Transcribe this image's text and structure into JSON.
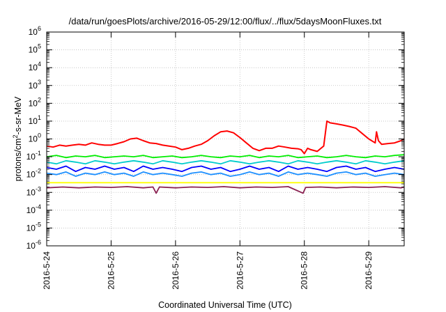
{
  "chart_data": {
    "type": "line",
    "title": "/data/run/goesPlots/archive/2016-05-29/12:00/flux/../flux/5daysMoonFluxes.txt",
    "xlabel": "Coordinated Universal Time (UTC)",
    "ylabel": {
      "base": "protons/cm",
      "sup": "2",
      "rest": "-s-sr-MeV"
    },
    "scale": {
      "y": "log"
    },
    "xlim": [
      0,
      5.55
    ],
    "ylim": [
      1e-06,
      1000000.0
    ],
    "x_ticks": [
      {
        "v": 0,
        "label": "2016-5-24"
      },
      {
        "v": 1,
        "label": "2016-5-25"
      },
      {
        "v": 2,
        "label": "2016-5-26"
      },
      {
        "v": 3,
        "label": "2016-5-27"
      },
      {
        "v": 4,
        "label": "2016-5-28"
      },
      {
        "v": 5,
        "label": "2016-5-29"
      }
    ],
    "y_ticks": [
      {
        "exp": -6,
        "label_base": "10",
        "label_exp": "-6"
      },
      {
        "exp": -5,
        "label_base": "10",
        "label_exp": "-5"
      },
      {
        "exp": -4,
        "label_base": "10",
        "label_exp": "-4"
      },
      {
        "exp": -3,
        "label_base": "10",
        "label_exp": "-3"
      },
      {
        "exp": -2,
        "label_base": "10",
        "label_exp": "-2"
      },
      {
        "exp": -1,
        "label_base": "10",
        "label_exp": "-1"
      },
      {
        "exp": 0,
        "label_base": "10",
        "label_exp": "0"
      },
      {
        "exp": 1,
        "label_base": "10",
        "label_exp": "1"
      },
      {
        "exp": 2,
        "label_base": "10",
        "label_exp": "2"
      },
      {
        "exp": 3,
        "label_base": "10",
        "label_exp": "3"
      },
      {
        "exp": 4,
        "label_base": "10",
        "label_exp": "4"
      },
      {
        "exp": 5,
        "label_base": "10",
        "label_exp": "5"
      },
      {
        "exp": 6,
        "label_base": "10",
        "label_exp": "6"
      }
    ],
    "grid": true,
    "legend": "none",
    "series": [
      {
        "color": "#ff0000",
        "x": [
          0.0,
          0.1,
          0.2,
          0.3,
          0.4,
          0.5,
          0.6,
          0.7,
          0.8,
          0.9,
          1.0,
          1.1,
          1.2,
          1.3,
          1.4,
          1.5,
          1.6,
          1.7,
          1.8,
          1.9,
          2.0,
          2.1,
          2.2,
          2.3,
          2.4,
          2.5,
          2.6,
          2.7,
          2.8,
          2.9,
          3.0,
          3.1,
          3.2,
          3.3,
          3.4,
          3.5,
          3.6,
          3.7,
          3.8,
          3.9,
          3.95,
          4.0,
          4.05,
          4.1,
          4.2,
          4.3,
          4.35,
          4.4,
          4.5,
          4.6,
          4.7,
          4.8,
          4.9,
          5.0,
          5.1,
          5.12,
          5.15,
          5.2,
          5.3,
          5.4,
          5.5,
          5.55
        ],
        "y": [
          0.4,
          0.35,
          0.45,
          0.4,
          0.45,
          0.5,
          0.45,
          0.6,
          0.5,
          0.45,
          0.45,
          0.55,
          0.7,
          1.0,
          1.1,
          0.8,
          0.6,
          0.55,
          0.45,
          0.4,
          0.35,
          0.25,
          0.3,
          0.4,
          0.5,
          0.8,
          1.5,
          2.5,
          2.8,
          2.2,
          1.2,
          0.6,
          0.3,
          0.22,
          0.3,
          0.3,
          0.4,
          0.35,
          0.3,
          0.28,
          0.25,
          0.15,
          0.3,
          0.25,
          0.2,
          0.4,
          10,
          8,
          7,
          6,
          5,
          4,
          2,
          1.0,
          0.6,
          2.5,
          0.8,
          0.5,
          0.55,
          0.6,
          0.8,
          1.0
        ]
      },
      {
        "color": "#00ee00",
        "x": [
          0.0,
          0.15,
          0.3,
          0.45,
          0.6,
          0.75,
          0.9,
          1.05,
          1.2,
          1.35,
          1.5,
          1.65,
          1.8,
          1.95,
          2.1,
          2.25,
          2.4,
          2.55,
          2.7,
          2.85,
          3.0,
          3.15,
          3.3,
          3.45,
          3.6,
          3.75,
          3.9,
          4.05,
          4.2,
          4.35,
          4.5,
          4.65,
          4.8,
          4.95,
          5.1,
          5.25,
          5.4,
          5.55
        ],
        "y": [
          0.1,
          0.12,
          0.09,
          0.11,
          0.1,
          0.12,
          0.09,
          0.1,
          0.11,
          0.1,
          0.12,
          0.09,
          0.1,
          0.11,
          0.09,
          0.1,
          0.12,
          0.1,
          0.09,
          0.11,
          0.1,
          0.12,
          0.09,
          0.11,
          0.1,
          0.12,
          0.09,
          0.1,
          0.11,
          0.09,
          0.1,
          0.12,
          0.1,
          0.09,
          0.11,
          0.1,
          0.12,
          0.13
        ]
      },
      {
        "color": "#00cccc",
        "x": [
          0.0,
          0.15,
          0.3,
          0.45,
          0.6,
          0.75,
          0.9,
          1.05,
          1.2,
          1.35,
          1.5,
          1.65,
          1.8,
          1.95,
          2.1,
          2.25,
          2.4,
          2.55,
          2.7,
          2.85,
          3.0,
          3.15,
          3.3,
          3.45,
          3.6,
          3.75,
          3.9,
          4.05,
          4.2,
          4.35,
          4.5,
          4.65,
          4.8,
          4.95,
          5.1,
          5.25,
          5.4,
          5.55
        ],
        "y": [
          0.05,
          0.04,
          0.06,
          0.05,
          0.04,
          0.06,
          0.05,
          0.04,
          0.05,
          0.06,
          0.05,
          0.04,
          0.06,
          0.05,
          0.04,
          0.05,
          0.06,
          0.05,
          0.04,
          0.06,
          0.05,
          0.04,
          0.05,
          0.06,
          0.05,
          0.04,
          0.06,
          0.05,
          0.04,
          0.05,
          0.06,
          0.05,
          0.04,
          0.06,
          0.05,
          0.04,
          0.05,
          0.06
        ]
      },
      {
        "color": "#0000ff",
        "x": [
          0.0,
          0.15,
          0.3,
          0.45,
          0.6,
          0.75,
          0.9,
          1.05,
          1.2,
          1.35,
          1.5,
          1.65,
          1.8,
          1.95,
          2.1,
          2.25,
          2.4,
          2.55,
          2.7,
          2.85,
          3.0,
          3.15,
          3.3,
          3.45,
          3.6,
          3.75,
          3.9,
          4.05,
          4.2,
          4.35,
          4.5,
          4.65,
          4.8,
          4.95,
          5.1,
          5.25,
          5.4,
          5.55
        ],
        "y": [
          0.025,
          0.02,
          0.03,
          0.015,
          0.025,
          0.02,
          0.03,
          0.02,
          0.025,
          0.015,
          0.03,
          0.02,
          0.025,
          0.02,
          0.015,
          0.025,
          0.03,
          0.02,
          0.025,
          0.015,
          0.02,
          0.03,
          0.02,
          0.025,
          0.015,
          0.03,
          0.02,
          0.025,
          0.02,
          0.015,
          0.025,
          0.03,
          0.02,
          0.025,
          0.015,
          0.02,
          0.025,
          0.02
        ]
      },
      {
        "color": "#1e90ff",
        "x": [
          0.0,
          0.15,
          0.3,
          0.45,
          0.6,
          0.75,
          0.9,
          1.05,
          1.2,
          1.35,
          1.5,
          1.65,
          1.8,
          1.95,
          2.1,
          2.25,
          2.4,
          2.55,
          2.7,
          2.85,
          3.0,
          3.15,
          3.3,
          3.45,
          3.6,
          3.75,
          3.9,
          4.05,
          4.2,
          4.35,
          4.5,
          4.65,
          4.8,
          4.95,
          5.1,
          5.25,
          5.4,
          5.55
        ],
        "y": [
          0.012,
          0.01,
          0.014,
          0.008,
          0.012,
          0.01,
          0.014,
          0.01,
          0.012,
          0.008,
          0.014,
          0.01,
          0.012,
          0.01,
          0.008,
          0.012,
          0.014,
          0.01,
          0.012,
          0.008,
          0.01,
          0.014,
          0.01,
          0.012,
          0.008,
          0.014,
          0.01,
          0.012,
          0.01,
          0.008,
          0.012,
          0.014,
          0.01,
          0.012,
          0.008,
          0.01,
          0.012,
          0.01
        ]
      },
      {
        "color": "#ffff00",
        "x": [
          0.0,
          0.5,
          1.0,
          1.5,
          2.0,
          2.5,
          3.0,
          3.5,
          4.0,
          4.5,
          5.0,
          5.55
        ],
        "y": [
          0.0035,
          0.0035,
          0.0035,
          0.0035,
          0.0035,
          0.0035,
          0.0035,
          0.0035,
          0.0035,
          0.0035,
          0.0035,
          0.0035
        ]
      },
      {
        "color": "#8b2252",
        "x": [
          0.0,
          0.25,
          0.5,
          0.75,
          1.0,
          1.25,
          1.5,
          1.65,
          1.7,
          1.75,
          2.0,
          2.25,
          2.5,
          2.75,
          3.0,
          3.25,
          3.5,
          3.75,
          3.98,
          4.02,
          4.25,
          4.5,
          4.75,
          5.0,
          5.25,
          5.5,
          5.55
        ],
        "y": [
          0.0018,
          0.002,
          0.0018,
          0.002,
          0.0019,
          0.0021,
          0.0018,
          0.002,
          0.0009,
          0.002,
          0.0018,
          0.002,
          0.0019,
          0.0021,
          0.0018,
          0.002,
          0.0019,
          0.0021,
          0.0009,
          0.0019,
          0.002,
          0.0018,
          0.002,
          0.0019,
          0.0021,
          0.0018,
          0.002
        ]
      }
    ]
  }
}
